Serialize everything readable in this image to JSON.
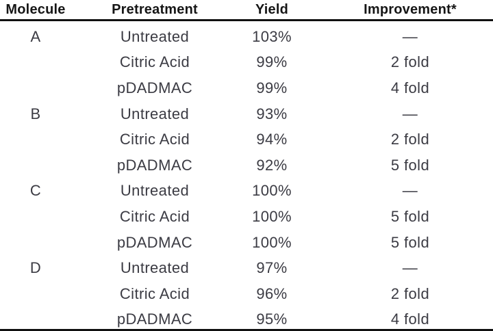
{
  "colors": {
    "background": "#ffffff",
    "text": "#3b3b43",
    "header_text": "#161616",
    "rule": "#101010"
  },
  "chart_data": {
    "type": "table",
    "title": "",
    "columns": [
      "Molecule",
      "Pretreatment",
      "Yield",
      "Improvement*"
    ],
    "rows": [
      [
        "A",
        "Untreated",
        "103%",
        "—"
      ],
      [
        "",
        "Citric Acid",
        "99%",
        "2 fold"
      ],
      [
        "",
        "pDADMAC",
        "99%",
        "4 fold"
      ],
      [
        "B",
        "Untreated",
        "93%",
        "—"
      ],
      [
        "",
        "Citric Acid",
        "94%",
        "2 fold"
      ],
      [
        "",
        "pDADMAC",
        "92%",
        "5 fold"
      ],
      [
        "C",
        "Untreated",
        "100%",
        "—"
      ],
      [
        "",
        "Citric Acid",
        "100%",
        "5 fold"
      ],
      [
        "",
        "pDADMAC",
        "100%",
        "5 fold"
      ],
      [
        "D",
        "Untreated",
        "97%",
        "—"
      ],
      [
        "",
        "Citric Acid",
        "96%",
        "2 fold"
      ],
      [
        "",
        "pDADMAC",
        "95%",
        "4 fold"
      ]
    ],
    "layout": {
      "header_rule": true,
      "bottom_rule": true,
      "column_alignment": "center"
    }
  }
}
